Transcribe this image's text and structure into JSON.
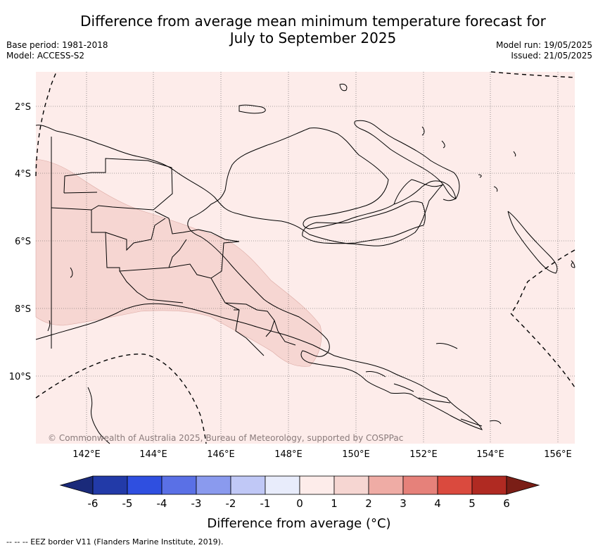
{
  "title_line1": "Difference from average mean minimum temperature forecast for",
  "title_line2": "July to September 2025",
  "base_period": "Base period: 1981-2018",
  "model": "Model: ACCESS-S2",
  "model_run": "Model run: 19/05/2025",
  "issued": "Issued: 21/05/2025",
  "copyright": "© Commonwealth of Australia 2025, Bureau of Meteorology, supported by COSPPac",
  "lat_labels": [
    "2°S",
    "4°S",
    "6°S",
    "8°S",
    "10°S"
  ],
  "lon_labels": [
    "142°E",
    "144°E",
    "146°E",
    "148°E",
    "150°E",
    "152°E",
    "154°E",
    "156°E"
  ],
  "colorbar": {
    "title": "Difference from average (°C)",
    "tick_labels": [
      "-6",
      "-5",
      "-4",
      "-3",
      "-2",
      "-1",
      "0",
      "1",
      "2",
      "3",
      "4",
      "5",
      "6"
    ],
    "colors": [
      "#1a2a7a",
      "#223aa8",
      "#2f4fe0",
      "#5a70e6",
      "#8a9aee",
      "#c0c8f6",
      "#e8ecfb",
      "#fdecea",
      "#f6d6d2",
      "#efaca5",
      "#e6817a",
      "#da4a3e",
      "#b02a22",
      "#7a1e16"
    ]
  },
  "map_colors": {
    "background": "#fdecea",
    "anomaly_1_2": "#f6d6d2"
  },
  "footnote": "-- -- -- EEZ border V11 (Flanders Marine Institute, 2019)."
}
